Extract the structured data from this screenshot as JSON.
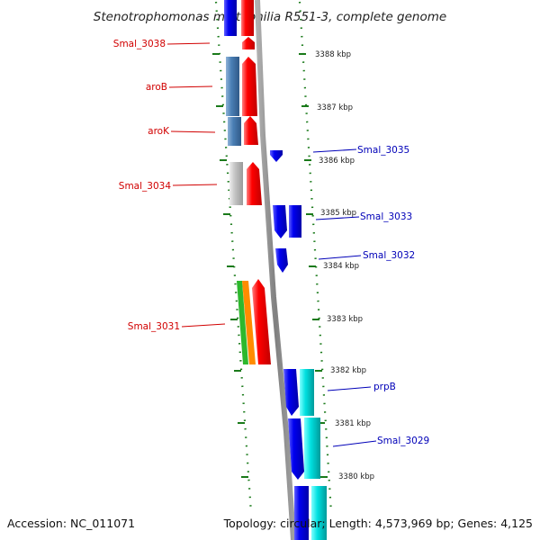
{
  "title": "Stenotrophomonas maltophilia R551-3, complete genome",
  "footer": {
    "accession": "Accession: NC_011071",
    "topology": "Topology: circular; Length: 4,573,969 bp; Genes: 4,125"
  },
  "ticks": [
    "3388 kbp",
    "3387 kbp",
    "3386 kbp",
    "3385 kbp",
    "3384 kbp",
    "3383 kbp",
    "3382 kbp",
    "3381 kbp",
    "3380 kbp"
  ],
  "genes_left": [
    "Smal_3038",
    "aroB",
    "aroK",
    "Smal_3034",
    "Smal_3031"
  ],
  "genes_right": [
    "Smal_3035",
    "Smal_3033",
    "Smal_3032",
    "prpB",
    "Smal_3029"
  ],
  "colors": {
    "forward": "#ff0000",
    "reverse": "#0000ff",
    "steel": "#4a7fb5",
    "gray": "#bdbdbd",
    "cyan": "#00d0d0",
    "green": "#2db82d",
    "orange": "#ff8c00",
    "backbone": "#888888",
    "ticks": "#1a7a1a"
  }
}
